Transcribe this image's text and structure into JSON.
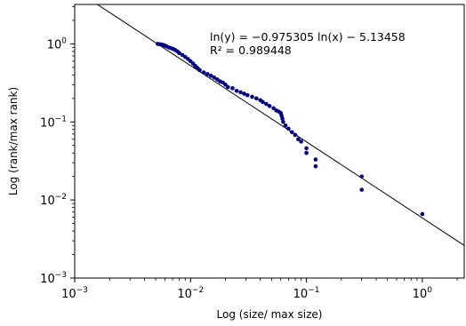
{
  "chart_data": {
    "type": "scatter",
    "xscale": "log",
    "yscale": "log",
    "xlim": [
      0.001,
      2.3
    ],
    "ylim": [
      0.001,
      3.2
    ],
    "xlabel": "Log (size/ max size)",
    "ylabel": "Log (rank/max rank)",
    "xticks": [
      0.001,
      0.01,
      0.1,
      1
    ],
    "yticks": [
      0.001,
      0.01,
      0.1,
      1
    ],
    "grid": false,
    "marker_color": "#000080",
    "fit_line_color": "#000000",
    "annotations": [
      "ln(y) = −0.975305 ln(x) − 5.13458",
      "R² = 0.989448"
    ],
    "fit": {
      "slope": -0.975305,
      "intercept": -5.13458
    },
    "series": [
      {
        "points": [
          [
            1.0,
            0.0066
          ],
          [
            0.3,
            0.02
          ],
          [
            0.3,
            0.0135
          ],
          [
            0.12,
            0.033
          ],
          [
            0.12,
            0.027
          ],
          [
            0.1,
            0.046
          ],
          [
            0.1,
            0.04
          ],
          [
            0.09,
            0.056
          ],
          [
            0.085,
            0.06
          ],
          [
            0.08,
            0.068
          ],
          [
            0.075,
            0.074
          ],
          [
            0.07,
            0.082
          ],
          [
            0.066,
            0.09
          ],
          [
            0.063,
            0.1
          ],
          [
            0.062,
            0.11
          ],
          [
            0.061,
            0.12
          ],
          [
            0.06,
            0.13
          ],
          [
            0.058,
            0.135
          ],
          [
            0.055,
            0.14
          ],
          [
            0.052,
            0.15
          ],
          [
            0.048,
            0.16
          ],
          [
            0.045,
            0.17
          ],
          [
            0.042,
            0.18
          ],
          [
            0.04,
            0.19
          ],
          [
            0.037,
            0.2
          ],
          [
            0.034,
            0.21
          ],
          [
            0.031,
            0.22
          ],
          [
            0.029,
            0.23
          ],
          [
            0.027,
            0.24
          ],
          [
            0.025,
            0.25
          ],
          [
            0.023,
            0.27
          ],
          [
            0.021,
            0.28
          ],
          [
            0.02,
            0.3
          ],
          [
            0.019,
            0.32
          ],
          [
            0.018,
            0.33
          ],
          [
            0.017,
            0.35
          ],
          [
            0.016,
            0.37
          ],
          [
            0.015,
            0.39
          ],
          [
            0.014,
            0.41
          ],
          [
            0.013,
            0.43
          ],
          [
            0.012,
            0.46
          ],
          [
            0.0115,
            0.49
          ],
          [
            0.011,
            0.52
          ],
          [
            0.0105,
            0.56
          ],
          [
            0.01,
            0.6
          ],
          [
            0.0095,
            0.64
          ],
          [
            0.009,
            0.68
          ],
          [
            0.0085,
            0.72
          ],
          [
            0.008,
            0.76
          ],
          [
            0.0077,
            0.8
          ],
          [
            0.0074,
            0.83
          ],
          [
            0.0071,
            0.86
          ],
          [
            0.0068,
            0.88
          ],
          [
            0.0065,
            0.9
          ],
          [
            0.0062,
            0.93
          ],
          [
            0.006,
            0.95
          ],
          [
            0.0058,
            0.97
          ],
          [
            0.0056,
            0.98
          ],
          [
            0.0054,
            0.99
          ],
          [
            0.0052,
            1.0
          ]
        ]
      }
    ]
  }
}
